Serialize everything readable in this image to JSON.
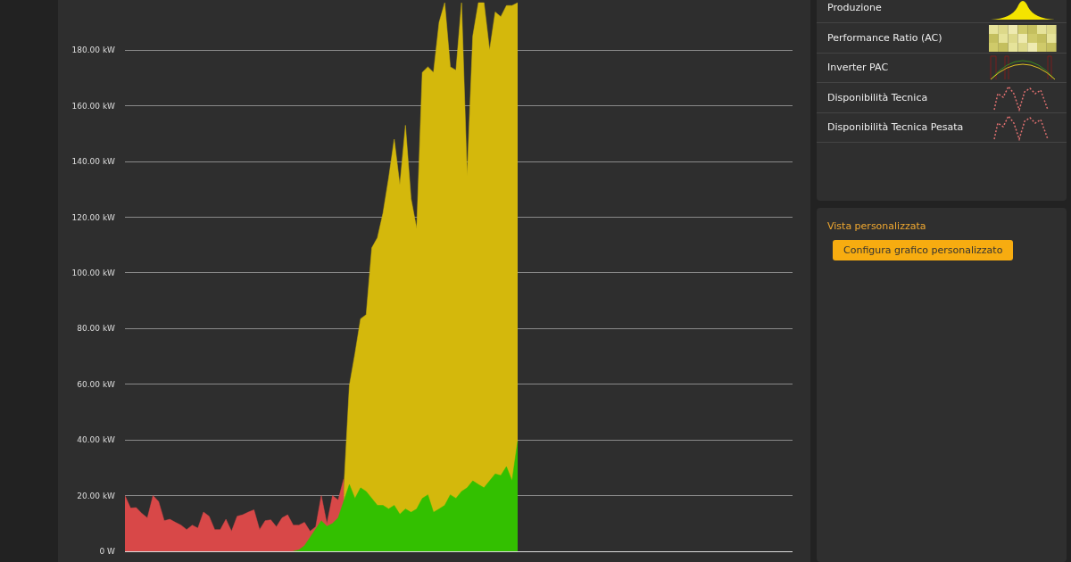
{
  "chart_data": [
    {
      "type": "area",
      "categories": [
        null,
        null,
        null,
        null,
        null,
        null,
        null,
        null,
        null,
        null,
        null,
        null,
        null,
        null,
        null,
        null,
        null,
        null,
        null,
        null,
        null,
        null,
        null,
        null,
        null,
        null,
        null,
        null,
        null,
        null,
        null,
        null,
        null,
        null,
        null,
        null,
        null,
        null,
        null,
        null,
        null,
        null,
        null,
        null,
        null,
        null,
        null,
        null,
        null,
        null,
        null,
        null,
        null,
        null,
        null,
        null,
        null,
        null,
        null,
        null,
        null,
        null,
        null,
        null,
        null,
        null,
        null,
        null,
        null,
        null,
        null,
        null,
        null,
        null,
        null,
        null,
        null,
        null,
        null,
        null,
        null,
        null,
        null,
        null,
        null,
        null,
        null,
        null,
        null,
        null,
        null,
        null,
        null,
        null,
        null,
        null,
        null,
        null,
        null,
        null,
        null,
        null,
        null,
        null,
        null,
        null,
        null,
        null,
        null,
        null,
        null,
        null,
        null,
        null,
        null,
        null,
        null,
        null,
        null,
        null
      ],
      "ylim": [
        0,
        198
      ],
      "yticks": [
        {
          "value": 0,
          "label": "0 W"
        },
        {
          "value": 20,
          "label": "20.00 kW"
        },
        {
          "value": 40,
          "label": "40.00 kW"
        },
        {
          "value": 60,
          "label": "60.00 kW"
        },
        {
          "value": 80,
          "label": "80.00 kW"
        },
        {
          "value": 100,
          "label": "100.00 kW"
        },
        {
          "value": 120,
          "label": "120.00 kW"
        },
        {
          "value": 140,
          "label": "140.00 kW"
        },
        {
          "value": 160,
          "label": "160.00 kW"
        },
        {
          "value": 180,
          "label": "180.00 kW"
        }
      ],
      "grid": "y",
      "tick_labels": "y",
      "series": [
        {
          "color": "#d4b80c",
          "values": [
            null,
            null,
            null,
            null,
            null,
            null,
            null,
            null,
            null,
            null,
            null,
            null,
            null,
            null,
            null,
            null,
            null,
            null,
            null,
            null,
            null,
            null,
            null,
            null,
            null,
            null,
            null,
            null,
            null,
            null,
            null,
            null,
            null,
            null,
            null,
            null,
            null,
            null,
            null,
            22,
            59.5,
            71,
            83.5,
            85,
            109,
            112.6,
            121.5,
            134,
            148,
            131.6,
            153,
            126.6,
            116,
            172,
            174,
            172,
            190,
            197,
            174,
            172.8,
            197,
            135,
            185,
            197,
            197,
            180,
            193.7,
            192,
            196,
            196,
            197,
            null,
            null,
            null,
            null,
            null,
            null,
            null,
            null,
            null,
            null,
            null,
            null,
            null,
            null,
            null,
            null,
            null,
            null,
            null,
            null,
            null,
            null,
            null,
            null,
            null,
            null,
            null,
            null,
            null,
            null,
            null,
            null,
            null,
            null,
            null,
            null,
            null,
            null,
            null,
            null,
            null,
            null,
            null,
            null,
            null,
            null,
            null,
            null,
            null
          ]
        },
        {
          "color": "#d84848",
          "values": [
            20,
            15.5,
            15.7,
            13.6,
            12,
            20,
            17.9,
            11,
            11.5,
            10.4,
            9.4,
            7.8,
            9.4,
            8.3,
            14.1,
            12.6,
            7.8,
            7.8,
            11.5,
            7.2,
            12.6,
            13.1,
            14.1,
            14.9,
            7.8,
            11,
            11.3,
            8.8,
            12,
            13.1,
            9.4,
            9.4,
            10.4,
            7.2,
            8.8,
            20,
            9.9,
            20,
            18.4,
            26,
            null,
            null,
            null,
            null,
            null,
            null,
            null,
            null,
            null,
            null,
            null,
            null,
            null,
            null,
            null,
            null,
            null,
            null,
            null,
            null,
            null,
            null,
            null,
            null,
            null,
            null,
            null,
            null,
            null,
            null,
            null,
            null,
            null,
            null,
            null,
            null,
            null,
            null,
            null,
            null,
            null,
            null,
            null,
            null,
            null,
            null,
            null,
            null,
            null,
            null,
            null,
            null,
            null,
            null,
            null,
            null,
            null,
            null,
            null,
            null,
            null,
            null,
            null,
            null,
            null,
            null,
            null,
            null,
            null,
            null,
            null,
            null,
            null,
            null,
            null,
            null,
            null,
            null,
            null,
            null
          ]
        },
        {
          "color": "#33c000",
          "values": [
            null,
            null,
            null,
            null,
            null,
            null,
            null,
            null,
            null,
            null,
            null,
            null,
            null,
            null,
            null,
            null,
            null,
            null,
            null,
            null,
            null,
            null,
            null,
            null,
            null,
            null,
            null,
            null,
            null,
            null,
            0,
            0.5,
            2,
            5,
            8,
            11,
            9,
            10,
            12,
            18,
            24,
            19,
            22.8,
            21.5,
            19,
            16.5,
            16.5,
            15.2,
            16.5,
            13.3,
            15.2,
            14,
            15.2,
            19,
            20.3,
            14,
            15.2,
            16.5,
            20.3,
            19,
            21.5,
            22.8,
            25.3,
            24,
            22.8,
            25.3,
            27.8,
            27.2,
            30.4,
            25.3,
            39.5,
            null,
            null,
            null,
            null,
            null,
            null,
            null,
            null,
            null,
            null,
            null,
            null,
            null,
            null,
            null,
            null,
            null,
            null,
            null,
            null,
            null,
            null,
            null,
            null,
            null,
            null,
            null,
            null,
            null,
            null,
            null,
            null,
            null,
            null,
            null,
            null,
            null,
            null,
            null,
            null,
            null,
            null,
            null,
            null,
            null,
            null,
            null,
            null,
            null
          ]
        }
      ]
    },
    {
      "type": "other",
      "annotations": [
        "Produzione",
        "Performance Ratio (AC)",
        "Inverter PAC",
        "Disponibilità Tecnica",
        "Disponibilità Tecnica Pesata"
      ]
    },
    {
      "type": "other",
      "title": "Vista personalizzata",
      "annotations": [
        "Configura grafico personalizzato"
      ]
    }
  ]
}
